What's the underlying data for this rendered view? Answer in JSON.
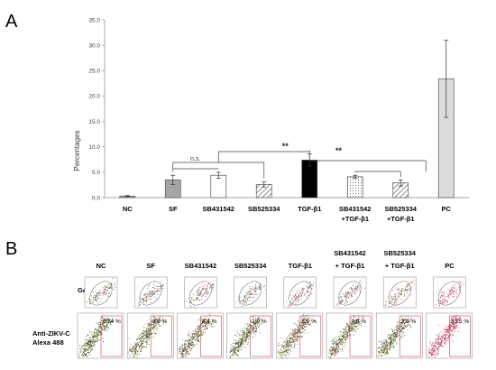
{
  "panel_a_label": "A",
  "panel_b_label": "B",
  "chart_data": {
    "type": "bar",
    "ylabel": "Percentages",
    "ylim": [
      0,
      35
    ],
    "yticks": [
      "0.0",
      "5.0",
      "10.0",
      "15.0",
      "20.0",
      "25.0",
      "30.0",
      "35.0"
    ],
    "categories": [
      {
        "line1": "NC",
        "line2": ""
      },
      {
        "line1": "SF",
        "line2": ""
      },
      {
        "line1": "SB431542",
        "line2": ""
      },
      {
        "line1": "SB525334",
        "line2": ""
      },
      {
        "line1": "TGF-β1",
        "line2": ""
      },
      {
        "line1": "SB431542",
        "line2": "+TGF-β1"
      },
      {
        "line1": "SB525334",
        "line2": "+TGF-β1"
      },
      {
        "line1": "PC",
        "line2": ""
      }
    ],
    "values": [
      0.3,
      3.5,
      4.4,
      2.6,
      7.4,
      4.1,
      2.9,
      23.4
    ],
    "errors": [
      0.1,
      0.9,
      0.6,
      0.5,
      1.2,
      0.3,
      0.6,
      7.6
    ],
    "fills": [
      "#aaaaaa",
      "#a6a6a6",
      "#ffffff",
      "hatch-diag",
      "#000000",
      "hatch-dots",
      "hatch-diag",
      "#dcdcdc"
    ],
    "annotations": [
      {
        "text": "n.s.",
        "from": 1,
        "to": 2
      },
      {
        "text": "**",
        "from": 1,
        "to": 4
      },
      {
        "text": "**",
        "from": 4,
        "to": 5
      }
    ]
  },
  "flow": {
    "row_labels": {
      "gate": "Gate",
      "stain_line1": "Anti-ZIKV-C",
      "stain_line2": "Alexa 488"
    },
    "columns": [
      {
        "line1": "",
        "line2": "NC",
        "pct": "0.24 %"
      },
      {
        "line1": "",
        "line2": "SF",
        "pct": "3.8 %"
      },
      {
        "line1": "",
        "line2": "SB431542",
        "pct": "4.4 %"
      },
      {
        "line1": "",
        "line2": "SB525334",
        "pct": "1.9 %"
      },
      {
        "line1": "",
        "line2": "TGF-β1",
        "pct": "8.0 %"
      },
      {
        "line1": "SB431542",
        "line2": "+ TGF-β1",
        "pct": "4.0 %"
      },
      {
        "line1": "SB525334",
        "line2": "+ TGF-β1",
        "pct": "2.8 %"
      },
      {
        "line1": "",
        "line2": "PC",
        "pct": "33.5 %"
      }
    ]
  }
}
